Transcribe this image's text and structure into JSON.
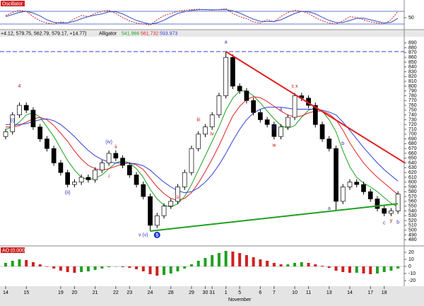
{
  "chart_data": [
    {
      "type": "line",
      "label": "Oscillator",
      "ylim": [
        0,
        100
      ],
      "yticks": [
        50
      ],
      "levels": [
        20,
        80
      ],
      "level_color": "#3050c0",
      "series": [
        {
          "color": "#d02020",
          "dashed": true,
          "values": [
            60,
            75,
            85,
            80,
            55,
            35,
            25,
            20,
            30,
            25,
            45,
            60,
            55,
            70,
            80,
            85,
            70,
            50,
            35,
            25,
            20,
            15,
            40,
            60,
            70,
            80,
            85,
            88,
            90,
            88,
            85,
            88,
            92,
            70,
            55,
            45,
            30,
            25,
            40,
            30,
            55,
            75,
            85,
            80,
            70,
            50,
            35,
            25,
            20,
            35,
            55,
            50,
            40,
            30,
            25,
            20,
            40,
            80
          ]
        },
        {
          "color": "#3050c0",
          "dashed": false,
          "values": [
            55,
            65,
            75,
            80,
            72,
            58,
            40,
            28,
            25,
            26,
            33,
            45,
            55,
            62,
            68,
            78,
            78,
            68,
            52,
            37,
            27,
            20,
            25,
            38,
            55,
            70,
            78,
            84,
            87,
            88,
            87,
            87,
            88,
            82,
            72,
            57,
            43,
            33,
            32,
            32,
            40,
            55,
            70,
            80,
            78,
            68,
            52,
            37,
            27,
            27,
            37,
            47,
            48,
            40,
            32,
            25,
            28,
            47
          ]
        }
      ]
    },
    {
      "type": "candlestick",
      "quote_text": "+4.12, 579.75, 562.79, 579.17, +14.77)",
      "indicator_name": "Alligator",
      "indicator_values": [
        "541.966",
        "561.732",
        "593.973"
      ],
      "ylim": [
        470,
        900
      ],
      "yticks": [
        480,
        490,
        500,
        510,
        520,
        530,
        540,
        550,
        560,
        570,
        580,
        590,
        600,
        610,
        620,
        630,
        640,
        650,
        660,
        670,
        680,
        690,
        700,
        710,
        720,
        730,
        740,
        750,
        760,
        770,
        780,
        790,
        800,
        810,
        820,
        830,
        840,
        850,
        860,
        870,
        880,
        890
      ],
      "categories": [
        "14",
        null,
        null,
        "15",
        null,
        null,
        null,
        null,
        "19",
        null,
        "20",
        null,
        null,
        "21",
        null,
        null,
        "22",
        null,
        "23",
        null,
        null,
        "24",
        null,
        null,
        "28",
        null,
        null,
        "29",
        null,
        "30",
        "31",
        null,
        "1",
        null,
        "5",
        null,
        null,
        "6",
        null,
        "7",
        null,
        null,
        "10",
        null,
        "11",
        null,
        null,
        "13",
        null,
        null,
        "14",
        null,
        null,
        "17",
        null,
        "18",
        null,
        null
      ],
      "month_label": "November",
      "month_index": 34,
      "open": [
        695,
        705,
        740,
        760,
        750,
        715,
        690,
        670,
        640,
        620,
        595,
        600,
        610,
        605,
        625,
        640,
        660,
        650,
        635,
        615,
        595,
        570,
        510,
        530,
        550,
        560,
        590,
        620,
        670,
        700,
        715,
        740,
        780,
        860,
        800,
        790,
        770,
        745,
        730,
        720,
        695,
        715,
        735,
        780,
        775,
        760,
        720,
        690,
        670,
        560,
        590,
        600,
        595,
        580,
        565,
        545,
        535,
        540
      ],
      "high": [
        711,
        746,
        766,
        766,
        756,
        721,
        696,
        676,
        646,
        626,
        606,
        616,
        616,
        631,
        646,
        666,
        666,
        656,
        641,
        621,
        601,
        576,
        536,
        556,
        566,
        596,
        626,
        676,
        706,
        721,
        746,
        786,
        872,
        866,
        806,
        796,
        776,
        751,
        736,
        726,
        721,
        741,
        786,
        786,
        781,
        766,
        726,
        696,
        676,
        596,
        606,
        606,
        601,
        586,
        571,
        551,
        546,
        581
      ],
      "low": [
        689,
        699,
        734,
        744,
        709,
        684,
        664,
        634,
        614,
        589,
        589,
        594,
        599,
        599,
        619,
        634,
        644,
        629,
        609,
        589,
        564,
        498,
        504,
        524,
        544,
        554,
        584,
        614,
        664,
        694,
        709,
        734,
        774,
        794,
        784,
        764,
        739,
        724,
        714,
        689,
        689,
        709,
        729,
        769,
        754,
        714,
        684,
        664,
        540,
        554,
        584,
        589,
        574,
        559,
        539,
        529,
        529,
        534
      ],
      "close": [
        705,
        740,
        760,
        750,
        715,
        690,
        670,
        640,
        620,
        595,
        600,
        610,
        605,
        625,
        640,
        660,
        650,
        635,
        615,
        595,
        570,
        510,
        530,
        550,
        560,
        590,
        620,
        670,
        700,
        715,
        740,
        780,
        860,
        800,
        790,
        770,
        745,
        730,
        720,
        695,
        715,
        735,
        780,
        775,
        760,
        720,
        690,
        670,
        560,
        590,
        600,
        595,
        580,
        565,
        545,
        535,
        540,
        575
      ],
      "series": [
        {
          "color": "#20a020",
          "values": [
            710,
            715,
            725,
            740,
            745,
            735,
            715,
            695,
            670,
            645,
            625,
            610,
            605,
            608,
            615,
            628,
            640,
            645,
            640,
            628,
            610,
            585,
            565,
            552,
            548,
            555,
            570,
            595,
            625,
            655,
            685,
            715,
            750,
            775,
            790,
            790,
            780,
            765,
            748,
            732,
            718,
            712,
            718,
            735,
            750,
            755,
            748,
            730,
            705,
            665,
            632,
            610,
            598,
            590,
            580,
            568,
            556,
            548
          ]
        },
        {
          "color": "#e02020",
          "values": [
            715,
            715,
            718,
            725,
            732,
            735,
            730,
            718,
            702,
            685,
            665,
            648,
            635,
            628,
            625,
            628,
            633,
            638,
            640,
            636,
            626,
            608,
            590,
            576,
            566,
            562,
            566,
            578,
            598,
            622,
            648,
            676,
            708,
            738,
            758,
            772,
            778,
            776,
            768,
            758,
            748,
            740,
            736,
            738,
            744,
            748,
            748,
            742,
            730,
            708,
            682,
            660,
            640,
            624,
            610,
            598,
            586,
            574
          ]
        },
        {
          "color": "#3040d0",
          "values": [
            720,
            720,
            720,
            722,
            726,
            730,
            732,
            728,
            720,
            708,
            695,
            680,
            666,
            655,
            647,
            642,
            640,
            640,
            640,
            638,
            634,
            625,
            612,
            600,
            590,
            582,
            578,
            580,
            588,
            600,
            616,
            636,
            660,
            686,
            710,
            730,
            744,
            752,
            756,
            756,
            756,
            754,
            752,
            752,
            752,
            752,
            750,
            746,
            740,
            725,
            708,
            690,
            672,
            656,
            640,
            626,
            614,
            602
          ]
        }
      ],
      "hline": {
        "value": 872,
        "color": "#3040d0"
      },
      "trendlines": [
        {
          "from": [
            32,
            872
          ],
          "to": [
            58,
            640
          ],
          "color": "#e02020"
        },
        {
          "from": [
            21,
            498
          ],
          "to": [
            57,
            555
          ],
          "color": "#20a020"
        }
      ],
      "annotations": [
        {
          "text": "4",
          "index": 2,
          "price": 800,
          "color": "#c01010"
        },
        {
          "text": "(i)",
          "index": 1,
          "price": 728,
          "color": "#3030c0"
        },
        {
          "text": "(ii)",
          "index": 9,
          "price": 578,
          "color": "#3030c0"
        },
        {
          "text": "(iv)",
          "index": 15,
          "price": 683,
          "color": "#3030c0"
        },
        {
          "text": "ii",
          "index": 16,
          "price": 673,
          "color": "#c01010"
        },
        {
          "text": "i",
          "index": 15,
          "price": 612,
          "color": "#c01010"
        },
        {
          "text": "ii",
          "index": 25,
          "price": 568,
          "color": "#c01010"
        },
        {
          "text": "iii",
          "index": 28,
          "price": 730,
          "color": "#c01010"
        },
        {
          "text": "iv",
          "index": 30,
          "price": 700,
          "color": "#c01010"
        },
        {
          "text": "v (v)",
          "index": 20,
          "price": 490,
          "color": "#3030c0"
        },
        {
          "text": "5",
          "index": 22,
          "price": 490,
          "color": "#1a30d0",
          "circle": true
        },
        {
          "text": "a",
          "index": 32,
          "price": 892,
          "color": "#3030c0"
        },
        {
          "text": "c x",
          "index": 42,
          "price": 800,
          "color": "#c01010"
        },
        {
          "text": "a",
          "index": 40,
          "price": 752,
          "color": "#3030c0"
        },
        {
          "text": "b",
          "index": 39,
          "price": 712,
          "color": "#3030c0"
        },
        {
          "text": "w",
          "index": 39,
          "price": 677,
          "color": "#c01010"
        },
        {
          "text": "b",
          "index": 49,
          "price": 680,
          "color": "#3030c0"
        },
        {
          "text": "a",
          "index": 47,
          "price": 545,
          "color": "#3030c0"
        },
        {
          "text": "c",
          "index": 55,
          "price": 515,
          "color": "#3030c0"
        },
        {
          "text": "y",
          "index": 56,
          "price": 520,
          "color": "#c01010"
        },
        {
          "text": "b",
          "index": 57,
          "price": 516,
          "color": "#3030c0"
        }
      ]
    },
    {
      "type": "bar",
      "label": "AO (0.000)",
      "ylim": [
        -25,
        25
      ],
      "yticks": [
        20,
        10,
        0,
        -10,
        -20
      ],
      "up_color": "#20a020",
      "down_color": "#d02020",
      "values": [
        5,
        8,
        10,
        9,
        6,
        3,
        0,
        -3,
        -6,
        -8,
        -9,
        -8,
        -7,
        -5,
        -3,
        -1,
        0,
        -1,
        -2,
        -4,
        -7,
        -11,
        -13,
        -12,
        -10,
        -7,
        -3,
        3,
        8,
        12,
        16,
        19,
        22,
        21,
        19,
        16,
        13,
        10,
        8,
        5,
        3,
        3,
        5,
        6,
        5,
        3,
        1,
        -2,
        -6,
        -8,
        -9,
        -9,
        -10,
        -11,
        -10,
        -8,
        -6,
        -3
      ]
    }
  ]
}
